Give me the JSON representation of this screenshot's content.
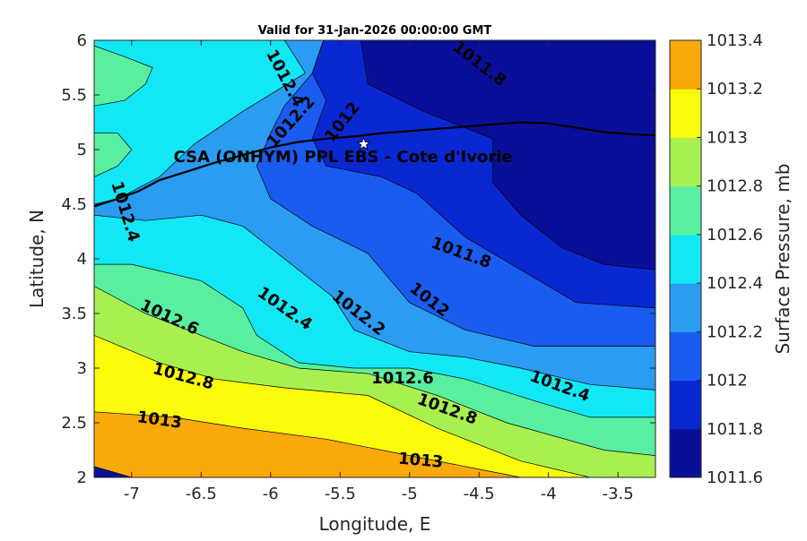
{
  "chart_data": {
    "type": "heatmap",
    "title": "Valid for 31-Jan-2026 00:00:00 GMT",
    "xlabel": "Longitude, E",
    "ylabel": "Latitude, N",
    "xlim": [
      -7.27,
      -3.23
    ],
    "ylim": [
      2,
      6
    ],
    "xticks": [
      -7,
      -6.5,
      -6,
      -5.5,
      -5,
      -4.5,
      -4,
      -3.5
    ],
    "xtick_labels": [
      "-7",
      "-6.5",
      "-6",
      "-5.5",
      "-5",
      "-4.5",
      "-4",
      "-3.5"
    ],
    "yticks": [
      2,
      2.5,
      3,
      3.5,
      4,
      4.5,
      5,
      5.5,
      6
    ],
    "ytick_labels": [
      "2",
      "2.5",
      "3",
      "3.5",
      "4",
      "4.5",
      "5",
      "5.5",
      "6"
    ],
    "colorbar": {
      "label": "Surface Pressure, mb",
      "levels": [
        1011.6,
        1011.8,
        1012,
        1012.2,
        1012.4,
        1012.6,
        1012.8,
        1013,
        1013.2,
        1013.4
      ],
      "tick_labels": [
        "1011.6",
        "1011.8",
        "1012",
        "1012.2",
        "1012.4",
        "1012.6",
        "1012.8",
        "1013",
        "1013.2",
        "1013.4"
      ],
      "colors": [
        "#0a0f9a",
        "#0a28d2",
        "#1a5cf0",
        "#2a9cf2",
        "#12e8f5",
        "#58f0a0",
        "#a8f050",
        "#fafa0a",
        "#faa80a",
        "#fa5a05"
      ]
    },
    "contour_bands": [
      {
        "level": 1011.6,
        "points": [
          [
            -5.35,
            6
          ],
          [
            -5.3,
            5.6
          ],
          [
            -4.9,
            5.35
          ],
          [
            -4.4,
            5.1
          ],
          [
            -4.4,
            4.7
          ],
          [
            -4.2,
            4.4
          ],
          [
            -3.9,
            4.1
          ],
          [
            -3.6,
            3.95
          ],
          [
            -3.23,
            3.9
          ],
          [
            -3.23,
            6
          ]
        ]
      },
      {
        "level": 1011.8,
        "points": [
          [
            -5.62,
            6
          ],
          [
            -5.7,
            5.7
          ],
          [
            -5.6,
            5.45
          ],
          [
            -5.7,
            5.1
          ],
          [
            -5.6,
            4.85
          ],
          [
            -5.2,
            4.75
          ],
          [
            -4.95,
            4.6
          ],
          [
            -4.6,
            4.2
          ],
          [
            -4.2,
            3.9
          ],
          [
            -3.8,
            3.6
          ],
          [
            -3.23,
            3.55
          ],
          [
            -3.23,
            6
          ]
        ]
      },
      {
        "level": 1012.0,
        "points": [
          [
            -5.62,
            6
          ],
          [
            -5.7,
            5.7
          ],
          [
            -5.9,
            5.4
          ],
          [
            -6.0,
            5.15
          ],
          [
            -6.1,
            4.85
          ],
          [
            -6.0,
            4.55
          ],
          [
            -5.7,
            4.3
          ],
          [
            -5.3,
            4.05
          ],
          [
            -5.0,
            3.6
          ],
          [
            -4.6,
            3.35
          ],
          [
            -4.1,
            3.2
          ],
          [
            -3.23,
            3.2
          ],
          [
            -3.23,
            6
          ]
        ]
      },
      {
        "level": 1012.2,
        "points": [
          [
            -5.9,
            6
          ],
          [
            -5.75,
            5.7
          ],
          [
            -6.2,
            5.35
          ],
          [
            -6.55,
            5.05
          ],
          [
            -6.8,
            4.75
          ],
          [
            -7.1,
            4.55
          ],
          [
            -7.27,
            4.5
          ],
          [
            -7.27,
            4.4
          ],
          [
            -6.9,
            4.35
          ],
          [
            -6.5,
            4.4
          ],
          [
            -6.2,
            4.3
          ],
          [
            -5.9,
            4.0
          ],
          [
            -5.55,
            3.65
          ],
          [
            -5.4,
            3.35
          ],
          [
            -5.0,
            3.15
          ],
          [
            -4.6,
            3.1
          ],
          [
            -4.2,
            3.0
          ],
          [
            -3.7,
            2.85
          ],
          [
            -3.23,
            2.8
          ],
          [
            -3.23,
            6
          ]
        ]
      },
      {
        "level": 1012.4,
        "points": [
          [
            -7.27,
            6
          ],
          [
            -7.27,
            5.95
          ],
          [
            -7.05,
            5.85
          ],
          [
            -6.85,
            5.75
          ],
          [
            -6.9,
            5.6
          ],
          [
            -7.05,
            5.45
          ],
          [
            -7.27,
            5.4
          ],
          [
            -7.27,
            5.15
          ],
          [
            -7.1,
            5.15
          ],
          [
            -7.0,
            5.0
          ],
          [
            -7.1,
            4.85
          ],
          [
            -7.27,
            4.75
          ],
          [
            -7.27,
            3.95
          ],
          [
            -7.0,
            3.95
          ],
          [
            -6.5,
            3.8
          ],
          [
            -6.2,
            3.55
          ],
          [
            -6.1,
            3.3
          ],
          [
            -5.8,
            3.05
          ],
          [
            -5.4,
            3.0
          ],
          [
            -5.0,
            3.0
          ],
          [
            -4.6,
            2.9
          ],
          [
            -4.1,
            2.7
          ],
          [
            -3.7,
            2.55
          ],
          [
            -3.23,
            2.55
          ],
          [
            -3.23,
            6
          ]
        ]
      },
      {
        "level": 1012.6,
        "points": [
          [
            -7.27,
            3.75
          ],
          [
            -6.9,
            3.5
          ],
          [
            -6.6,
            3.35
          ],
          [
            -6.2,
            3.15
          ],
          [
            -5.8,
            3.0
          ],
          [
            -5.3,
            2.95
          ],
          [
            -4.8,
            2.75
          ],
          [
            -4.3,
            2.5
          ],
          [
            -3.6,
            2.25
          ],
          [
            -3.23,
            2.2
          ],
          [
            -3.23,
            6
          ],
          [
            -7.27,
            6
          ]
        ]
      },
      {
        "level": 1012.8,
        "points": [
          [
            -7.27,
            3.3
          ],
          [
            -6.8,
            3.05
          ],
          [
            -6.4,
            2.9
          ],
          [
            -5.9,
            2.82
          ],
          [
            -5.3,
            2.75
          ],
          [
            -4.8,
            2.45
          ],
          [
            -4.2,
            2.15
          ],
          [
            -3.7,
            2.0
          ],
          [
            -3.23,
            2.0
          ],
          [
            -3.23,
            6
          ],
          [
            -7.27,
            6
          ]
        ]
      },
      {
        "level": 1013.0,
        "points": [
          [
            -7.27,
            2.6
          ],
          [
            -6.7,
            2.55
          ],
          [
            -6.2,
            2.45
          ],
          [
            -5.6,
            2.35
          ],
          [
            -5.0,
            2.2
          ],
          [
            -4.4,
            2.05
          ],
          [
            -4.2,
            2.0
          ],
          [
            -3.23,
            2.0
          ],
          [
            -3.23,
            6
          ],
          [
            -7.27,
            6
          ]
        ]
      },
      {
        "level": 1013.2,
        "points": [
          [
            -7.27,
            2.1
          ],
          [
            -7.0,
            2.0
          ],
          [
            -3.23,
            2.0
          ],
          [
            -3.23,
            6
          ],
          [
            -7.27,
            6
          ]
        ]
      }
    ],
    "contour_labels": [
      {
        "text": "1011.8",
        "x": -4.5,
        "y": 5.78,
        "angle": 38
      },
      {
        "text": "1012.4",
        "x": -5.9,
        "y": 5.65,
        "angle": 62
      },
      {
        "text": "1012.2",
        "x": -5.85,
        "y": 5.25,
        "angle": -48
      },
      {
        "text": "1012",
        "x": -5.48,
        "y": 5.25,
        "angle": -52
      },
      {
        "text": "1012.4",
        "x": -7.05,
        "y": 4.43,
        "angle": 73
      },
      {
        "text": "1011.8",
        "x": -4.63,
        "y": 4.05,
        "angle": 20
      },
      {
        "text": "1012",
        "x": -4.86,
        "y": 3.62,
        "angle": 38
      },
      {
        "text": "1012.2",
        "x": -5.37,
        "y": 3.5,
        "angle": 38
      },
      {
        "text": "1012.4",
        "x": -5.9,
        "y": 3.54,
        "angle": 35
      },
      {
        "text": "1012.6",
        "x": -6.73,
        "y": 3.46,
        "angle": 25
      },
      {
        "text": "1012.8",
        "x": -6.63,
        "y": 2.92,
        "angle": 15
      },
      {
        "text": "1012.6",
        "x": -5.05,
        "y": 2.9,
        "angle": 0
      },
      {
        "text": "1012.8",
        "x": -4.73,
        "y": 2.62,
        "angle": 20
      },
      {
        "text": "1012.4",
        "x": -3.92,
        "y": 2.83,
        "angle": 20
      },
      {
        "text": "1013",
        "x": -6.8,
        "y": 2.52,
        "angle": 8
      },
      {
        "text": "1013",
        "x": -4.92,
        "y": 2.15,
        "angle": 5
      }
    ],
    "coastline": [
      [
        -7.27,
        4.48
      ],
      [
        -7.1,
        4.55
      ],
      [
        -6.95,
        4.62
      ],
      [
        -6.8,
        4.72
      ],
      [
        -6.6,
        4.8
      ],
      [
        -6.4,
        4.88
      ],
      [
        -6.2,
        4.95
      ],
      [
        -6.0,
        5.02
      ],
      [
        -5.8,
        5.07
      ],
      [
        -5.6,
        5.1
      ],
      [
        -5.4,
        5.12
      ],
      [
        -5.2,
        5.15
      ],
      [
        -5.0,
        5.17
      ],
      [
        -4.8,
        5.19
      ],
      [
        -4.6,
        5.21
      ],
      [
        -4.4,
        5.23
      ],
      [
        -4.2,
        5.25
      ],
      [
        -4.0,
        5.24
      ],
      [
        -3.8,
        5.2
      ],
      [
        -3.6,
        5.16
      ],
      [
        -3.4,
        5.14
      ],
      [
        -3.23,
        5.13
      ]
    ],
    "site": {
      "name": "CSA (ONHYM) PPL EBS  - Cote d'Ivorie",
      "lon": -5.33,
      "lat": 5.05
    }
  }
}
